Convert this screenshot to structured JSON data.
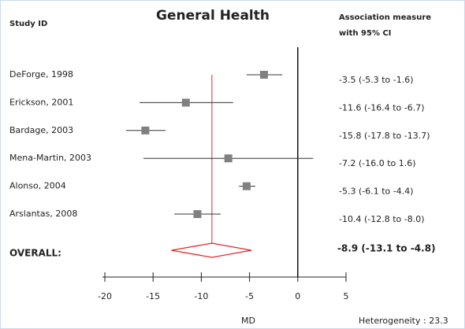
{
  "chart_data": {
    "type": "forest",
    "title": "General Health",
    "study_header": "Study ID",
    "measure_header": [
      "Association measure",
      "with 95% CI"
    ],
    "x_label": "MD",
    "annotation": "Heterogeneity : 23.3",
    "categories": [
      "DeForge, 1998",
      "Erickson, 2001",
      "Bardage, 2003",
      "Mena-Martin, 2003",
      "Alonso, 2004",
      "Arslantas, 2008"
    ],
    "values": [
      -3.5,
      -11.6,
      -15.8,
      -7.2,
      -5.3,
      -10.4
    ],
    "lower": [
      -5.3,
      -16.4,
      -17.8,
      -16.0,
      -6.1,
      -12.8
    ],
    "upper": [
      -1.6,
      -6.7,
      -13.7,
      1.6,
      -4.4,
      -8.0
    ],
    "value_labels": [
      "-3.5 (-5.3  to  -1.6)",
      "-11.6 (-16.4  to  -6.7)",
      "-15.8 (-17.8  to  -13.7)",
      "-7.2 (-16.0  to  1.6)",
      "-5.3 (-6.1  to  -4.4)",
      "-10.4 (-12.8  to  -8.0)"
    ],
    "overall": {
      "label": "OVERALL:",
      "value": -8.9,
      "lower": -13.1,
      "upper": -4.8,
      "value_label": "-8.9 (-13.1 to -4.8)"
    },
    "xlim": [
      -20,
      5
    ],
    "xticks": [
      -20,
      -15,
      -10,
      -5,
      0,
      5
    ],
    "marker_color": "#808080",
    "line_color": "#333333",
    "overall_color": "#e8262a"
  }
}
